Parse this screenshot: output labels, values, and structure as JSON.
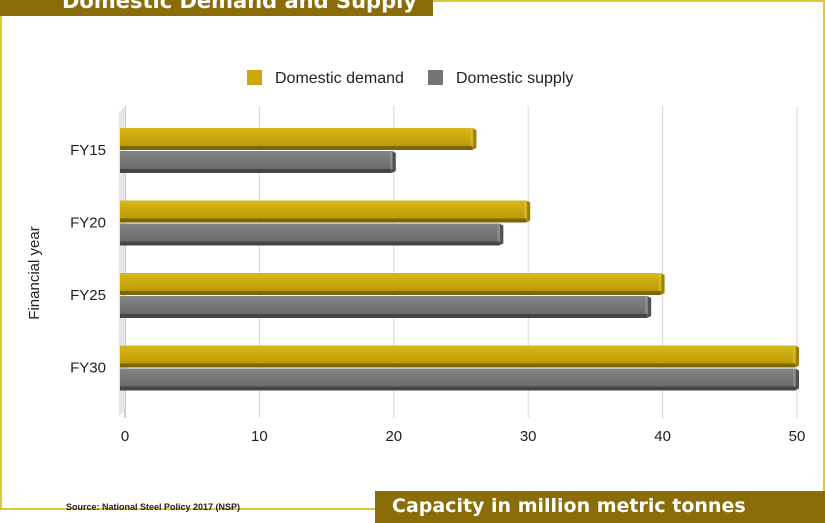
{
  "title": "Domestic Demand and Supply",
  "source": "Source: National Steel Policy 2017 (NSP)",
  "colors": {
    "accent": "#8b6d07",
    "frame": "#dcc63a",
    "demand": "#c9a80f",
    "supply": "#757575"
  },
  "chart_data": {
    "type": "bar",
    "orientation": "horizontal",
    "categories": [
      "FY15",
      "FY20",
      "FY25",
      "FY30"
    ],
    "series": [
      {
        "name": "Domestic demand",
        "values": [
          26,
          30,
          40,
          50
        ]
      },
      {
        "name": "Domestic supply",
        "values": [
          20,
          28,
          39,
          50
        ]
      }
    ],
    "xlabel": "Capacity in million metric tonnes",
    "ylabel": "Financial year",
    "xlim": [
      0,
      50
    ],
    "xticks": [
      "0",
      "10",
      "20",
      "30",
      "40",
      "50"
    ],
    "grid": true,
    "legend": "top"
  }
}
